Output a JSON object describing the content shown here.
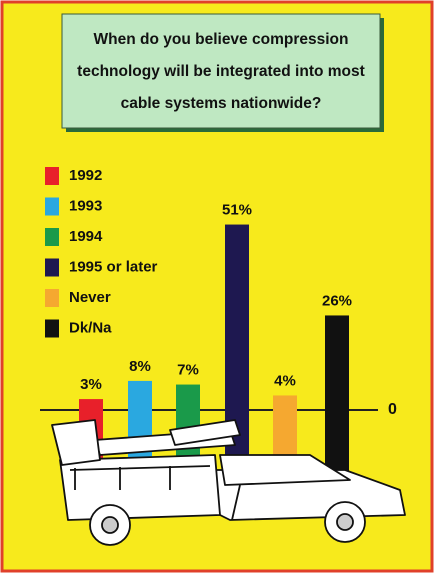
{
  "chart_data": {
    "type": "bar",
    "title": "When do you believe compression technology will be integrated into most cable systems nationwide?",
    "categories": [
      "1992",
      "1993",
      "1994",
      "1995 or later",
      "Never",
      "Dk/Na"
    ],
    "values": [
      3,
      8,
      7,
      51,
      4,
      26
    ],
    "value_labels": [
      "3%",
      "8%",
      "7%",
      "51%",
      "4%",
      "26%"
    ],
    "colors": [
      "#e8202a",
      "#2aa8e0",
      "#1a9a4a",
      "#1e1850",
      "#f5a830",
      "#111111"
    ],
    "ylim": [
      0,
      55
    ],
    "yticks": [
      0
    ]
  }
}
